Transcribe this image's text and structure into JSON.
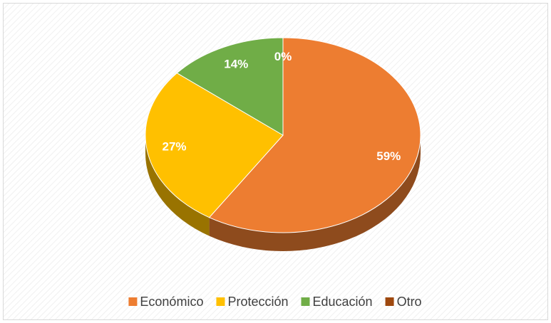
{
  "chart_data": {
    "type": "pie",
    "categories": [
      "Económico",
      "Protección",
      "Educación",
      "Otro"
    ],
    "values": [
      59,
      27,
      14,
      0
    ],
    "value_labels": [
      "59%",
      "27%",
      "14%",
      "0%"
    ],
    "colors": [
      "#ed7d31",
      "#ffc000",
      "#70ad47",
      "#9e480e"
    ],
    "legend": "bottom"
  }
}
